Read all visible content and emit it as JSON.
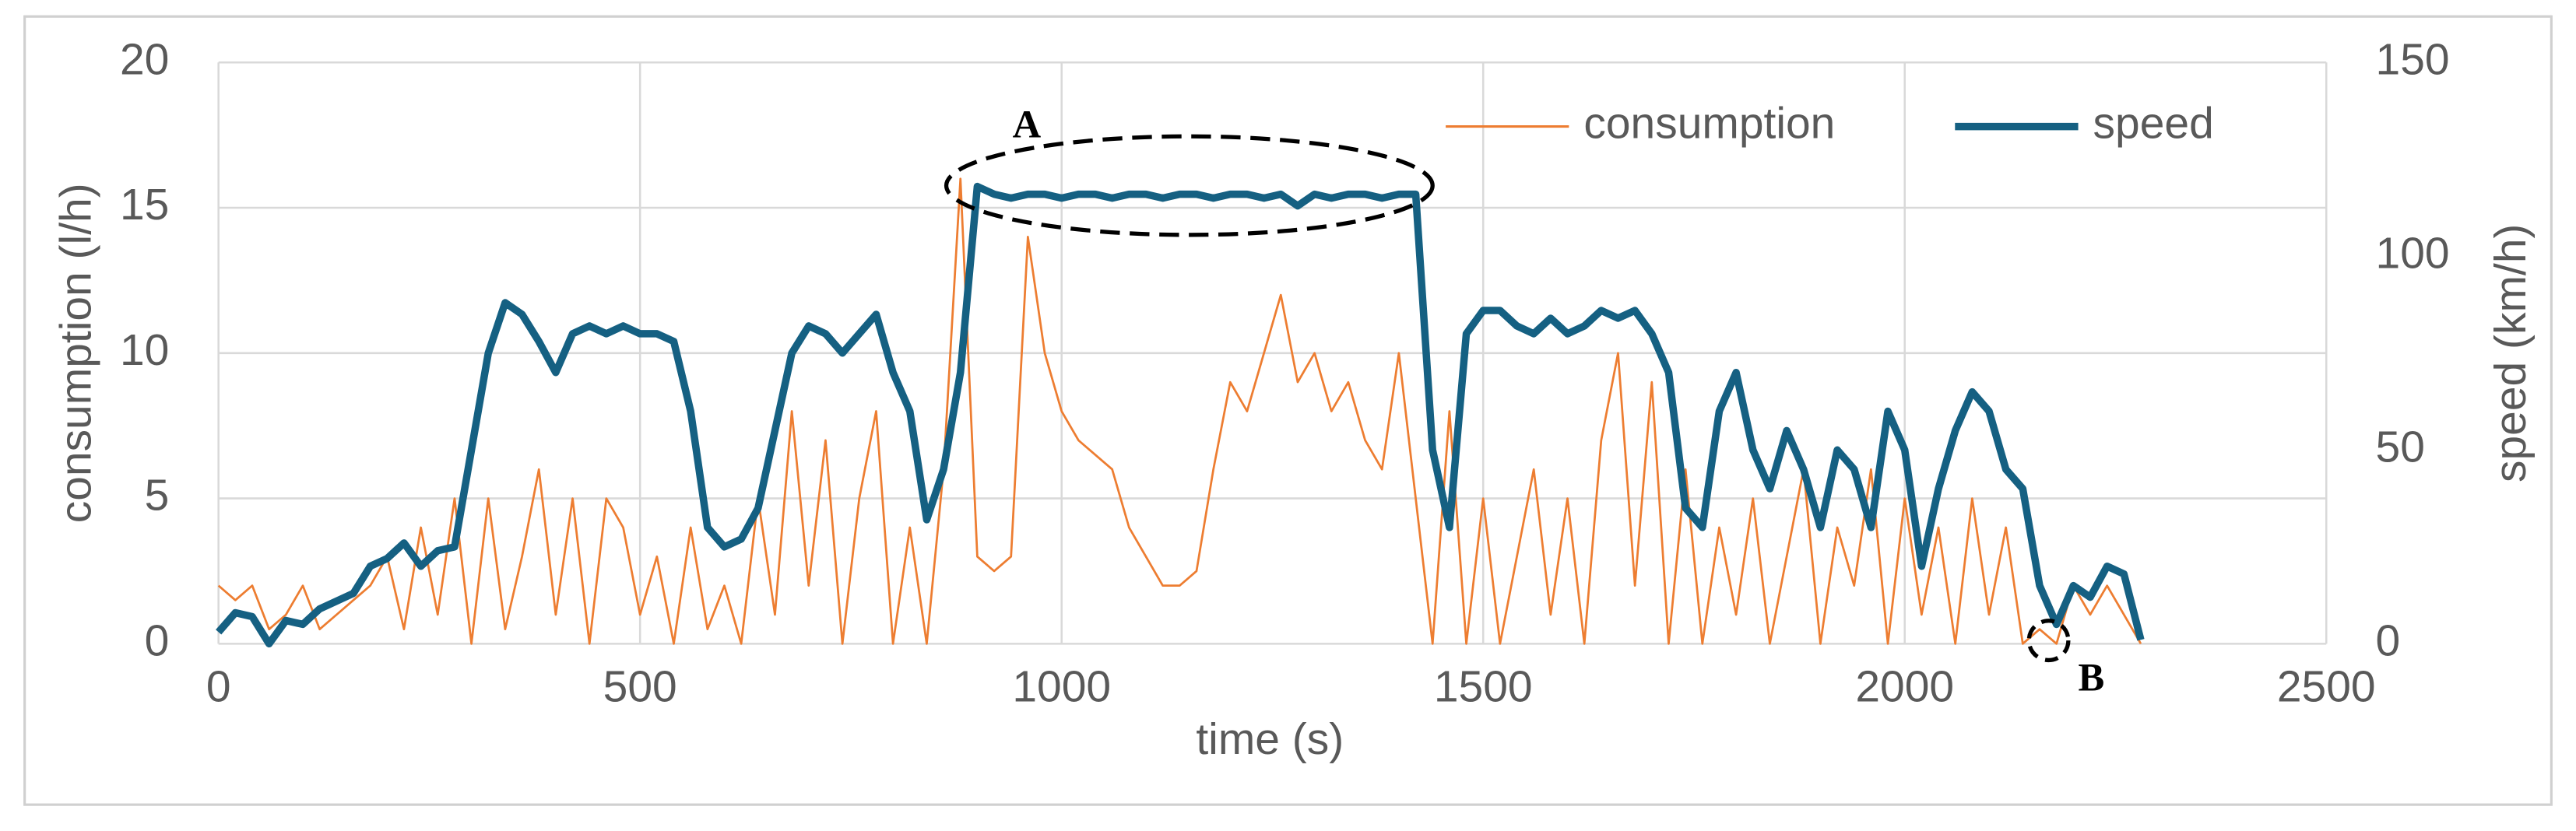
{
  "chart_data": {
    "type": "line",
    "x_label": "time (s)",
    "y_label": "consumption (l/h)",
    "y2_label": "speed (km/h)",
    "annotations": [
      "A",
      "B"
    ],
    "x": [
      0,
      20,
      40,
      60,
      80,
      100,
      120,
      140,
      160,
      180,
      200,
      220,
      240,
      260,
      280,
      300,
      320,
      340,
      360,
      380,
      400,
      420,
      440,
      460,
      480,
      500,
      520,
      540,
      560,
      580,
      600,
      620,
      640,
      660,
      680,
      700,
      720,
      740,
      760,
      780,
      800,
      820,
      840,
      860,
      880,
      900,
      920,
      940,
      960,
      980,
      1000,
      1020,
      1040,
      1060,
      1080,
      1100,
      1120,
      1140,
      1160,
      1180,
      1200,
      1220,
      1240,
      1260,
      1280,
      1300,
      1320,
      1340,
      1360,
      1380,
      1400,
      1420,
      1440,
      1460,
      1480,
      1500,
      1520,
      1540,
      1560,
      1580,
      1600,
      1620,
      1640,
      1660,
      1680,
      1700,
      1720,
      1740,
      1760,
      1780,
      1800,
      1820,
      1840,
      1860,
      1880,
      1900,
      1920,
      1940,
      1960,
      1980,
      2000,
      2020,
      2040,
      2060,
      2080,
      2100,
      2120,
      2140,
      2160,
      2180,
      2200,
      2220,
      2240,
      2260,
      2280
    ],
    "series": [
      {
        "name": "consumption",
        "color": "#ed7d31",
        "values": [
          2,
          1.5,
          2,
          0.5,
          1,
          2,
          0.5,
          1,
          1.5,
          2,
          3,
          0.5,
          4,
          1,
          5,
          0,
          5,
          0.5,
          3,
          6,
          1,
          5,
          0,
          5,
          4,
          1,
          3,
          0,
          4,
          0.5,
          2,
          0,
          5,
          1,
          8,
          2,
          7,
          0,
          5,
          8,
          0,
          4,
          0,
          6,
          16,
          3,
          2.5,
          3,
          14,
          10,
          8,
          7,
          6.5,
          6,
          4,
          3,
          2,
          2,
          2.5,
          6,
          9,
          8,
          10,
          12,
          9,
          10,
          8,
          9,
          7,
          6,
          10,
          5,
          0,
          8,
          0,
          5,
          0,
          3,
          6,
          1,
          5,
          0,
          7,
          10,
          2,
          9,
          0,
          6,
          0,
          4,
          1,
          5,
          0,
          3,
          6,
          0,
          4,
          2,
          6,
          0,
          5,
          1,
          4,
          0,
          5,
          1,
          4,
          0,
          0.5,
          0,
          2,
          1,
          2,
          1,
          0
        ]
      },
      {
        "name": "speed",
        "color": "#156082",
        "axis": "y2",
        "values": [
          3,
          8,
          7,
          0,
          6,
          5,
          9,
          11,
          13,
          20,
          22,
          26,
          20,
          24,
          25,
          50,
          75,
          88,
          85,
          78,
          70,
          80,
          82,
          80,
          82,
          80,
          80,
          78,
          60,
          30,
          25,
          27,
          35,
          55,
          75,
          82,
          80,
          75,
          80,
          85,
          70,
          60,
          32,
          45,
          70,
          118,
          116,
          115,
          116,
          116,
          115,
          116,
          116,
          115,
          116,
          116,
          115,
          116,
          116,
          115,
          116,
          116,
          115,
          116,
          113,
          116,
          115,
          116,
          116,
          115,
          116,
          116,
          50,
          30,
          80,
          86,
          86,
          82,
          80,
          84,
          80,
          82,
          86,
          84,
          86,
          80,
          70,
          35,
          30,
          60,
          70,
          50,
          40,
          55,
          45,
          30,
          50,
          45,
          30,
          60,
          50,
          20,
          40,
          55,
          65,
          60,
          45,
          40,
          15,
          5,
          15,
          12,
          20,
          18,
          1
        ]
      }
    ],
    "xlim": [
      0,
      2500
    ],
    "xticks": [
      0,
      500,
      1000,
      1500,
      2000,
      2500
    ],
    "ylim": [
      0,
      20
    ],
    "yticks": [
      0,
      5,
      10,
      15,
      20
    ],
    "y2lim": [
      0,
      150
    ],
    "y2ticks": [
      0,
      50,
      100,
      150
    ],
    "grid": true,
    "legend": "top-right"
  }
}
